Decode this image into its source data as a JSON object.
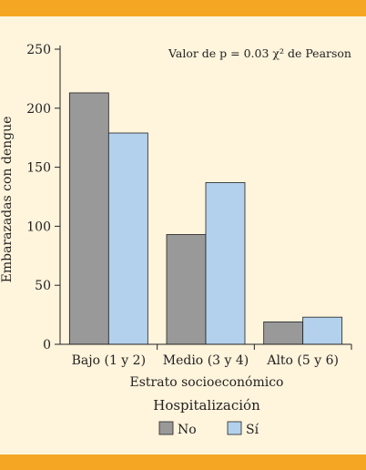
{
  "colors": {
    "band": "#f5a623",
    "background": "#fff4dc",
    "series_no": "#999999",
    "series_si": "#b3d1ec",
    "stroke": "#222222"
  },
  "chart_data": {
    "type": "bar",
    "categories": [
      "Bajo (1 y 2)",
      "Medio (3 y 4)",
      "Alto (5 y 6)"
    ],
    "series": [
      {
        "name": "No",
        "values": [
          213,
          93,
          19
        ]
      },
      {
        "name": "Sí",
        "values": [
          179,
          137,
          23
        ]
      }
    ],
    "xlabel": "Estrato socioeconómico",
    "ylabel": "Embarazadas con dengue",
    "ylim": [
      0,
      250
    ],
    "yticks": [
      0,
      50,
      100,
      150,
      200,
      250
    ],
    "annotation": "Valor de p = 0.03 χ² de Pearson",
    "legend_title": "Hospitalización",
    "legend_placement": "bottom",
    "grid": false
  }
}
